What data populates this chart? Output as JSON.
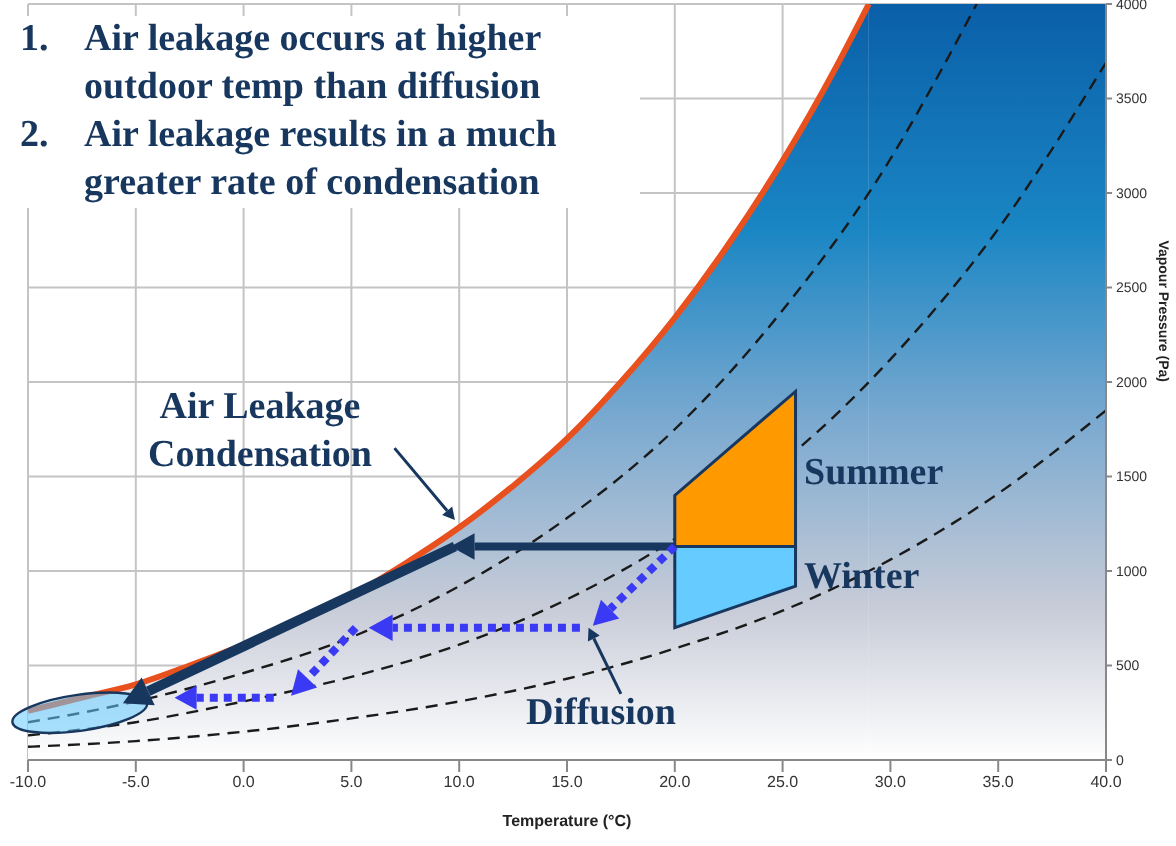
{
  "chart_data": {
    "type": "line",
    "xlabel": "Temperature (°C)",
    "ylabel": "Vapour Pressure (Pa)",
    "xlim": [
      -10,
      40
    ],
    "xticks": [
      {
        "value": -10,
        "label": "-10.0"
      },
      {
        "value": -5,
        "label": "-5.0"
      },
      {
        "value": 0,
        "label": "0.0"
      },
      {
        "value": 5,
        "label": "5.0"
      },
      {
        "value": 10,
        "label": "10.0"
      },
      {
        "value": 15,
        "label": "15.0"
      },
      {
        "value": 20,
        "label": "20.0"
      },
      {
        "value": 25,
        "label": "25.0"
      },
      {
        "value": 30,
        "label": "30.0"
      },
      {
        "value": 35,
        "label": "35.0"
      },
      {
        "value": 40,
        "label": "40.0"
      }
    ],
    "bands": [
      {
        "axis": "x",
        "from": 29,
        "to": 40,
        "color": "#0a5fa8"
      }
    ],
    "ylim": [
      0,
      4000
    ],
    "yticks": [
      0,
      500,
      1000,
      1500,
      2000,
      2500,
      3000,
      3500,
      4000
    ],
    "grid": true,
    "series": [
      {
        "type": "area",
        "color": "#e8501e",
        "line_style": "solid",
        "x": [
          -10,
          -7.5,
          -5,
          -2.5,
          0,
          2.5,
          5,
          7.5,
          10,
          12.5,
          15,
          17.5,
          20,
          22.5,
          25,
          27.5,
          29
        ],
        "values": [
          260,
          330,
          400,
          500,
          610,
          730,
          870,
          1040,
          1230,
          1450,
          1700,
          2000,
          2340,
          2730,
          3170,
          3670,
          4000
        ]
      },
      {
        "color": "#1a1a1a",
        "line_style": "dashed",
        "x": [
          -10,
          -7.5,
          0,
          5,
          10,
          15,
          20,
          25,
          30,
          32.5,
          34
        ],
        "values": [
          200,
          250,
          460,
          650,
          920,
          1280,
          1750,
          2380,
          3180,
          3680,
          4000
        ]
      },
      {
        "color": "#1a1a1a",
        "line_style": "dashed",
        "x": [
          -10,
          -5,
          0,
          5,
          10,
          15,
          20,
          27.5,
          30,
          35,
          40
        ],
        "values": [
          130,
          200,
          310,
          440,
          610,
          850,
          1170,
          1830,
          2120,
          2810,
          3690
        ]
      },
      {
        "color": "#1a1a1a",
        "line_style": "dashed",
        "x": [
          -10,
          -5,
          0,
          5,
          10,
          15,
          20,
          25,
          30,
          35,
          40
        ],
        "values": [
          70,
          100,
          150,
          220,
          310,
          430,
          590,
          790,
          1060,
          1410,
          1850
        ]
      }
    ],
    "annotations": [
      "1. Air leakage occurs at higher outdoor temp than diffusion",
      "2. Air leakage results in a much greater rate of condensation",
      "Air Leakage Condensation",
      "Summer",
      "Winter",
      "Diffusion"
    ]
  }
}
